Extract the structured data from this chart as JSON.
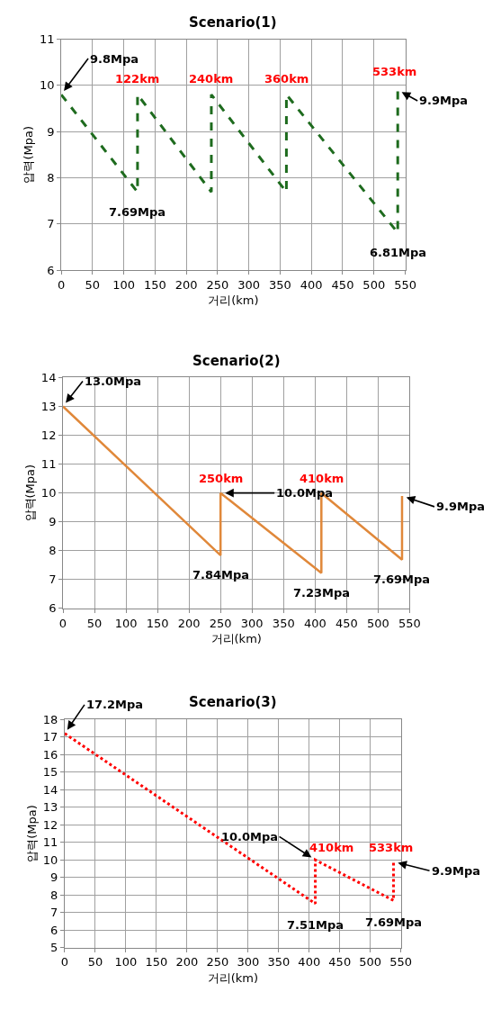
{
  "chart_data": [
    {
      "type": "line",
      "title": "Scenario(1)",
      "xlabel": "거리(km)",
      "ylabel": "압력(Mpa)",
      "xlim": [
        0,
        550
      ],
      "xticks": [
        0,
        50,
        100,
        150,
        200,
        250,
        300,
        350,
        400,
        450,
        500,
        550
      ],
      "ylim": [
        6,
        11
      ],
      "yticks": [
        6,
        7,
        8,
        9,
        10,
        11
      ],
      "grid": true,
      "line_style": "dashed",
      "marker": "none",
      "series": [
        {
          "color": "#1e6b1e",
          "x": [
            0,
            122,
            122,
            240,
            240,
            360,
            360,
            538,
            538
          ],
          "values": [
            9.8,
            7.69,
            9.8,
            7.69,
            9.8,
            7.69,
            9.8,
            6.81,
            9.9
          ]
        }
      ],
      "annotations": [
        {
          "text": "9.8Mpa",
          "x": 0,
          "y": 9.8
        },
        {
          "text": "122km",
          "x": 122,
          "y": 9.8
        },
        {
          "text": "240km",
          "x": 240,
          "y": 9.8
        },
        {
          "text": "360km",
          "x": 360,
          "y": 9.8
        },
        {
          "text": "533km",
          "x": 533,
          "y": 9.9
        },
        {
          "text": "9.9Mpa",
          "x": 538,
          "y": 9.9
        },
        {
          "text": "7.69Mpa",
          "x": 122,
          "y": 7.69
        },
        {
          "text": "6.81Mpa",
          "x": 538,
          "y": 6.81
        }
      ]
    },
    {
      "type": "line",
      "title": "Scenario(2)",
      "xlabel": "거리(km)",
      "ylabel": "압력(Mpa)",
      "xlim": [
        0,
        550
      ],
      "xticks": [
        0,
        50,
        100,
        150,
        200,
        250,
        300,
        350,
        400,
        450,
        500,
        550
      ],
      "ylim": [
        6,
        14
      ],
      "yticks": [
        6,
        7,
        8,
        9,
        10,
        11,
        12,
        13,
        14
      ],
      "grid": true,
      "line_style": "solid",
      "marker": "none",
      "series": [
        {
          "color": "#e0883a",
          "x": [
            0,
            250,
            250,
            410,
            410,
            538,
            538
          ],
          "values": [
            13.0,
            7.84,
            10.0,
            7.23,
            10.0,
            7.69,
            9.9
          ]
        }
      ],
      "annotations": [
        {
          "text": "13.0Mpa",
          "x": 0,
          "y": 13.0
        },
        {
          "text": "250km",
          "x": 250,
          "y": 10.0
        },
        {
          "text": "10.0Mpa",
          "x": 250,
          "y": 10.0
        },
        {
          "text": "410km",
          "x": 410,
          "y": 10.0
        },
        {
          "text": "9.9Mpa",
          "x": 538,
          "y": 9.9
        },
        {
          "text": "7.84Mpa",
          "x": 250,
          "y": 7.84
        },
        {
          "text": "7.23Mpa",
          "x": 410,
          "y": 7.23
        },
        {
          "text": "7.69Mpa",
          "x": 538,
          "y": 7.69
        }
      ]
    },
    {
      "type": "line",
      "title": "Scenario(3)",
      "xlabel": "거리(km)",
      "ylabel": "압력(Mpa)",
      "xlim": [
        0,
        550
      ],
      "xticks": [
        0,
        50,
        100,
        150,
        200,
        250,
        300,
        350,
        400,
        450,
        500,
        550
      ],
      "ylim": [
        5,
        18
      ],
      "yticks": [
        5,
        6,
        7,
        8,
        9,
        10,
        11,
        12,
        13,
        14,
        15,
        16,
        17,
        18
      ],
      "grid": true,
      "line_style": "dotted",
      "marker": "none",
      "series": [
        {
          "color": "#ff0000",
          "x": [
            0,
            410,
            410,
            538,
            538
          ],
          "values": [
            17.2,
            7.51,
            10.0,
            7.69,
            9.9
          ]
        }
      ],
      "annotations": [
        {
          "text": "17.2Mpa",
          "x": 0,
          "y": 17.2
        },
        {
          "text": "10.0Mpa",
          "x": 410,
          "y": 10.0
        },
        {
          "text": "410km",
          "x": 410,
          "y": 10.0
        },
        {
          "text": "533km",
          "x": 533,
          "y": 9.9
        },
        {
          "text": "9.9Mpa",
          "x": 538,
          "y": 9.9
        },
        {
          "text": "7.51Mpa",
          "x": 410,
          "y": 7.51
        },
        {
          "text": "7.69Mpa",
          "x": 538,
          "y": 7.69
        }
      ]
    }
  ]
}
